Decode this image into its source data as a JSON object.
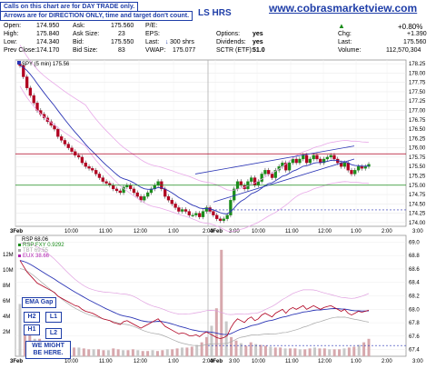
{
  "site": "www.cobrasmarketview.com",
  "ticker_fragment": "LS HRS",
  "notes": {
    "line1": "Calls on this chart are for DAY TRADE only.",
    "line2": "Arrows are for DIRECTION ONLY, time and target don't count."
  },
  "quote": {
    "open_label": "Open:",
    "open": "174.950",
    "high_label": "High:",
    "high": "175.840",
    "low_label": "Low:",
    "low": "174.340",
    "prev_label": "Prev Close:",
    "prev": "174.170",
    "ask_label": "Ask:",
    "ask": "175.560",
    "asksize_label": "Ask Size:",
    "asksize": "23",
    "bid_label": "Bid:",
    "bid": "175.550",
    "bidsize_label": "Bid Size:",
    "bidsize": "83",
    "pe_label": "P/E:",
    "pe": "",
    "eps_label": "EPS:",
    "eps": "",
    "last_label": "Last:",
    "last_size": "300 shrs",
    "vwap_label": "VWAP:",
    "vwap": "175.077",
    "options_label": "Options:",
    "options": "yes",
    "dividends_label": "Dividends:",
    "dividends": "yes",
    "sctr_label": "SCTR (ETF):",
    "sctr": "51.0",
    "chg_pct": "+0.80%",
    "chg_label": "Chg:",
    "chg": "+1.390",
    "last2_label": "Last:",
    "last": "175.560",
    "volume_label": "Volume:",
    "volume": "112,570,304"
  },
  "buttons": {
    "ema_gap": "EMA Gap",
    "h2": "H2",
    "l1": "L1",
    "h1": "H1",
    "l2": "L2",
    "we_might": "WE MIGHT BE HERE."
  },
  "chart_data": [
    {
      "type": "candlestick",
      "title": "SPY (5 min) 175.56",
      "y_ticks": [
        "178.25",
        "178.00",
        "177.75",
        "177.50",
        "177.25",
        "177.00",
        "176.75",
        "176.50",
        "176.25",
        "176.00",
        "175.75",
        "175.50",
        "175.25",
        "175.00",
        "174.75",
        "174.50",
        "174.25",
        "174.00"
      ],
      "ylim": [
        173.9,
        178.35
      ],
      "x_ticks": [
        "3Feb",
        "10:00",
        "11:00",
        "12:00",
        "1:00",
        "2:00",
        "3:00",
        "4Feb",
        "10:00",
        "11:00",
        "12:00",
        "1:00",
        "2:00",
        "3:00"
      ],
      "horizontal_lines": [
        175.84,
        175.0,
        174.34
      ],
      "close_series": [
        178.2,
        177.9,
        177.6,
        177.4,
        177.2,
        177.0,
        176.9,
        176.8,
        176.7,
        176.6,
        176.5,
        176.3,
        176.2,
        176.1,
        176.0,
        175.9,
        175.8,
        175.75,
        175.6,
        175.5,
        175.45,
        175.4,
        175.3,
        175.2,
        175.1,
        175.05,
        175.0,
        174.9,
        174.85,
        174.8,
        174.95,
        175.0,
        174.9,
        174.8,
        174.7,
        174.6,
        174.7,
        174.8,
        174.9,
        175.0,
        175.1,
        174.9,
        174.7,
        174.6,
        174.5,
        174.4,
        174.3,
        174.35,
        174.3,
        174.2,
        174.2,
        174.25,
        174.15,
        174.3,
        174.4,
        174.3,
        174.2,
        174.1,
        174.05,
        174.1,
        174.2,
        174.6,
        174.9,
        175.1,
        175.0,
        174.9,
        175.1,
        175.2,
        175.0,
        175.1,
        175.3,
        175.4,
        175.3,
        175.2,
        175.4,
        175.5,
        175.6,
        175.4,
        175.6,
        175.7,
        175.6,
        175.7,
        175.8,
        175.6,
        175.7,
        175.8,
        175.7,
        175.6,
        175.7,
        175.75,
        175.8,
        175.7,
        175.6,
        175.5,
        175.6,
        175.4,
        175.3,
        175.4,
        175.5,
        175.45,
        175.5,
        175.56
      ]
    },
    {
      "type": "line",
      "title": "RSP 68.06",
      "legend": [
        "RSP:FXY 0.9292",
        "TBT 69.55",
        "EUX 38.66"
      ],
      "y_ticks": [
        "69.0",
        "68.8",
        "68.6",
        "68.4",
        "68.2",
        "68.0",
        "67.8",
        "67.6",
        "67.4"
      ],
      "ylim": [
        67.3,
        69.1
      ],
      "volume_ticks": [
        "12M",
        "10M",
        "8M",
        "6M",
        "4M",
        "2M"
      ]
    }
  ]
}
